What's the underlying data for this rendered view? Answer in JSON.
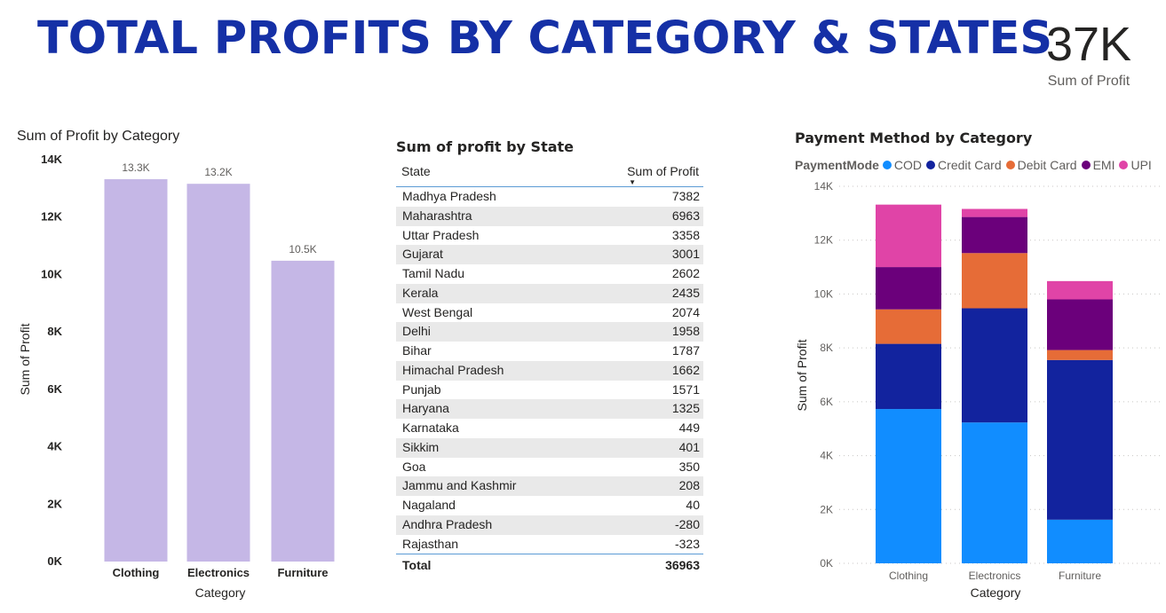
{
  "header": {
    "title": "TOTAL PROFITS  BY CATEGORY & STATES"
  },
  "kpi": {
    "value": "37K",
    "label": "Sum of Profit"
  },
  "table": {
    "title": "Sum of profit by State",
    "columns": [
      "State",
      "Sum of Profit"
    ],
    "rows": [
      [
        "Madhya Pradesh",
        "7382"
      ],
      [
        "Maharashtra",
        "6963"
      ],
      [
        "Uttar Pradesh",
        "3358"
      ],
      [
        "Gujarat",
        "3001"
      ],
      [
        "Tamil Nadu",
        "2602"
      ],
      [
        "Kerala",
        "2435"
      ],
      [
        "West Bengal",
        "2074"
      ],
      [
        "Delhi",
        "1958"
      ],
      [
        "Bihar",
        "1787"
      ],
      [
        "Himachal Pradesh",
        "1662"
      ],
      [
        "Punjab",
        "1571"
      ],
      [
        "Haryana",
        "1325"
      ],
      [
        "Karnataka",
        "449"
      ],
      [
        "Sikkim",
        "401"
      ],
      [
        "Goa",
        "350"
      ],
      [
        "Jammu and Kashmir",
        "208"
      ],
      [
        "Nagaland",
        "40"
      ],
      [
        "Andhra Pradesh",
        "-280"
      ],
      [
        "Rajasthan",
        "-323"
      ]
    ],
    "total": [
      "Total",
      "36963"
    ]
  },
  "chart_data": [
    {
      "type": "bar",
      "title": "Sum of Profit by Category",
      "xlabel": "Category",
      "ylabel": "Sum of Profit",
      "categories": [
        "Clothing",
        "Electronics",
        "Furniture"
      ],
      "values": [
        13320,
        13160,
        10480
      ],
      "data_labels": [
        "13.3K",
        "13.2K",
        "10.5K"
      ],
      "ylim": [
        0,
        14000
      ],
      "yticks": [
        "0K",
        "2K",
        "4K",
        "6K",
        "8K",
        "10K",
        "12K",
        "14K"
      ],
      "grid": false,
      "color": "#c5b7e6"
    },
    {
      "type": "bar",
      "stacked": true,
      "title": "Payment Method by Category",
      "xlabel": "Category",
      "ylabel": "Sum of Profit",
      "legend_title": "PaymentMode",
      "legend_position": "top-left",
      "categories": [
        "Clothing",
        "Electronics",
        "Furniture"
      ],
      "series": [
        {
          "name": "COD",
          "color": "#118dff",
          "values": [
            5730,
            5230,
            1620
          ]
        },
        {
          "name": "Credit Card",
          "color": "#12239e",
          "values": [
            2420,
            4240,
            5930
          ]
        },
        {
          "name": "Debit Card",
          "color": "#e66c37",
          "values": [
            1280,
            2050,
            370
          ]
        },
        {
          "name": "EMI",
          "color": "#6b007b",
          "values": [
            1570,
            1340,
            1880
          ]
        },
        {
          "name": "UPI",
          "color": "#e044a7",
          "values": [
            2320,
            300,
            680
          ]
        }
      ],
      "ylim": [
        0,
        14000
      ],
      "yticks": [
        "0K",
        "2K",
        "4K",
        "6K",
        "8K",
        "10K",
        "12K",
        "14K"
      ],
      "grid": true
    }
  ]
}
